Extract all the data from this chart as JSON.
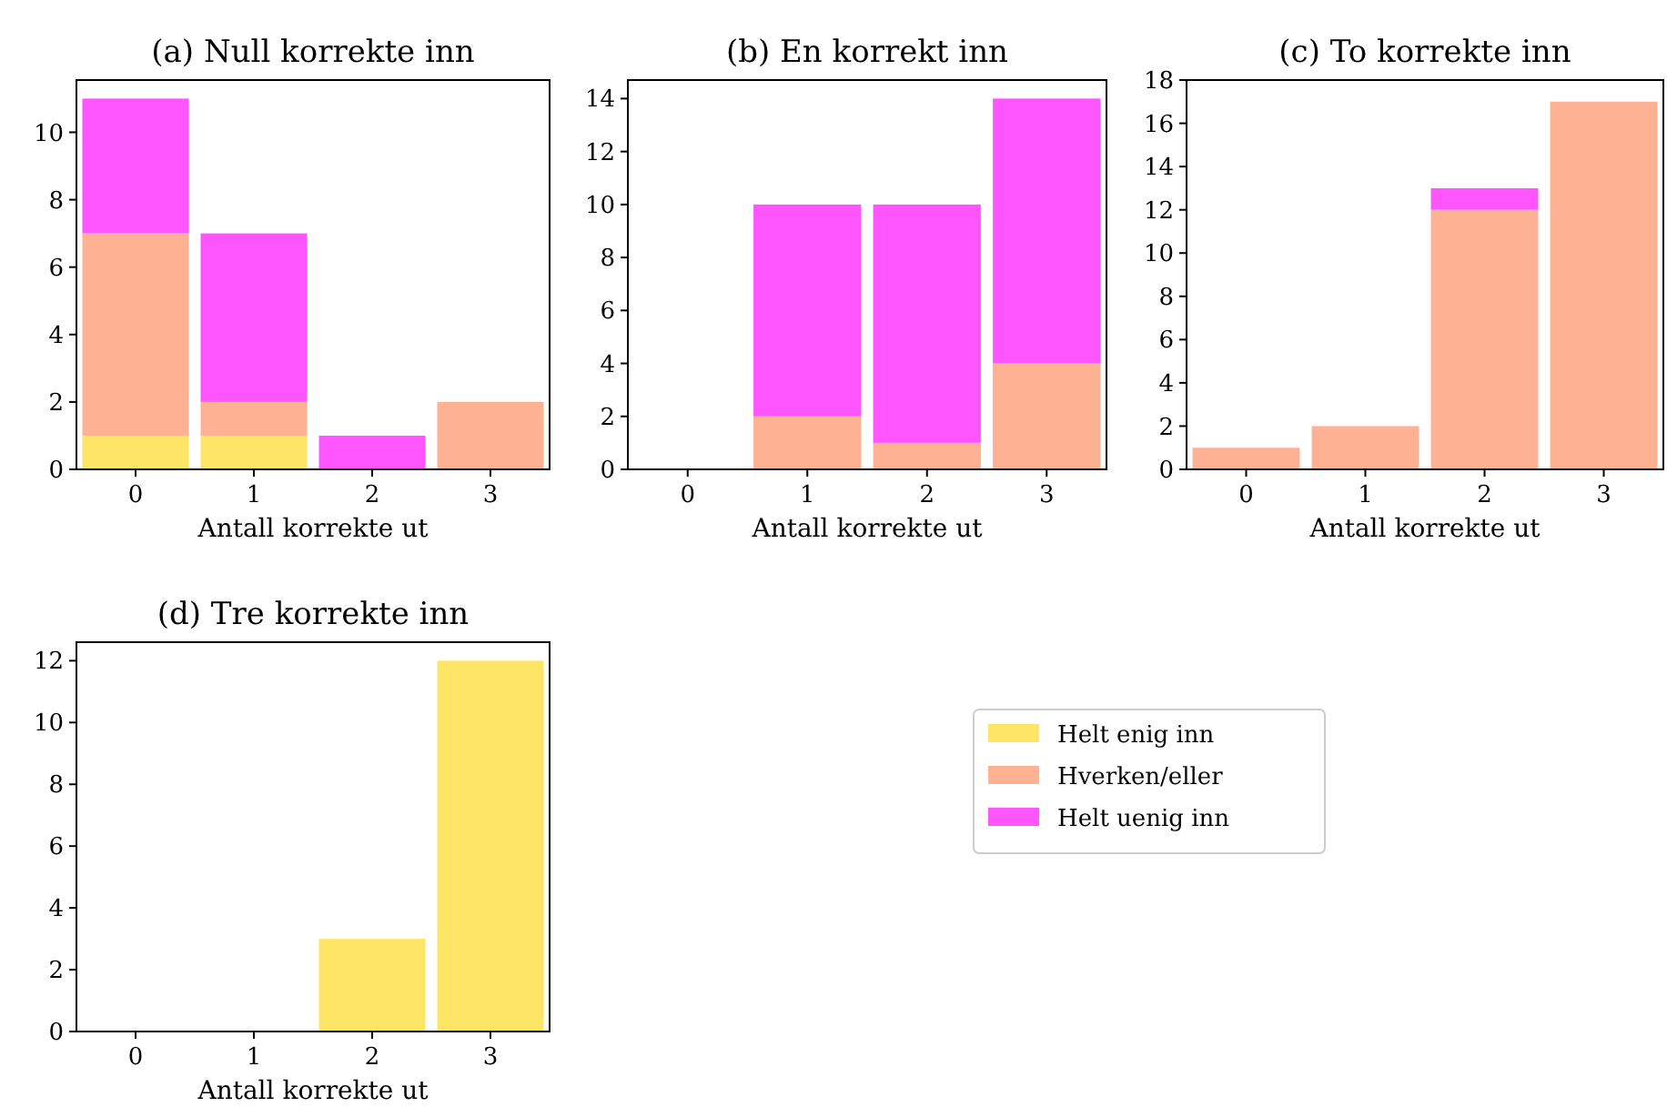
{
  "chart_data": [
    {
      "type": "bar",
      "title": "(a) Null korrekte inn",
      "xlabel": "Antall korrekte ut",
      "categories": [
        "0",
        "1",
        "2",
        "3"
      ],
      "stacked": true,
      "ylim": [
        0,
        11.55
      ],
      "yticks": [
        0,
        2,
        4,
        6,
        8,
        10
      ],
      "legend": false,
      "series": [
        {
          "color": "#ffe566",
          "values": [
            1,
            1,
            0,
            0
          ]
        },
        {
          "color": "#ffb194",
          "values": [
            6,
            1,
            0,
            2
          ]
        },
        {
          "color": "#ff55ff",
          "values": [
            4,
            5,
            1,
            0
          ]
        }
      ]
    },
    {
      "type": "bar",
      "title": "(b) En korrekt inn",
      "xlabel": "Antall korrekte ut",
      "categories": [
        "0",
        "1",
        "2",
        "3"
      ],
      "stacked": true,
      "ylim": [
        0,
        14.7
      ],
      "yticks": [
        0,
        2,
        4,
        6,
        8,
        10,
        12,
        14
      ],
      "legend": false,
      "series": [
        {
          "color": "#ffb194",
          "values": [
            0,
            2,
            1,
            4
          ]
        },
        {
          "color": "#ff55ff",
          "values": [
            0,
            8,
            9,
            10
          ]
        }
      ]
    },
    {
      "type": "bar",
      "title": "(c) To korrekte inn",
      "xlabel": "Antall korrekte ut",
      "categories": [
        "0",
        "1",
        "2",
        "3"
      ],
      "stacked": true,
      "ylim": [
        0,
        18
      ],
      "yticks": [
        0,
        2,
        4,
        6,
        8,
        10,
        12,
        14,
        16,
        18
      ],
      "legend": false,
      "series": [
        {
          "color": "#ffb194",
          "values": [
            1,
            2,
            12,
            17
          ]
        },
        {
          "color": "#ff55ff",
          "values": [
            0,
            0,
            1,
            0
          ]
        }
      ]
    },
    {
      "type": "bar",
      "title": "(d) Tre korrekte inn",
      "xlabel": "Antall korrekte ut",
      "categories": [
        "0",
        "1",
        "2",
        "3"
      ],
      "stacked": true,
      "ylim": [
        0,
        12.6
      ],
      "yticks": [
        0,
        2,
        4,
        6,
        8,
        10,
        12
      ],
      "legend": "right",
      "series": [
        {
          "name": "Helt enig inn",
          "color": "#ffe566",
          "values": [
            0,
            0,
            3,
            12
          ]
        },
        {
          "name": "Hverken/eller",
          "color": "#ffb194",
          "values": [
            0,
            0,
            0,
            0
          ]
        },
        {
          "name": "Helt uenig inn",
          "color": "#ff55ff",
          "values": [
            0,
            0,
            0,
            0
          ]
        }
      ]
    }
  ]
}
